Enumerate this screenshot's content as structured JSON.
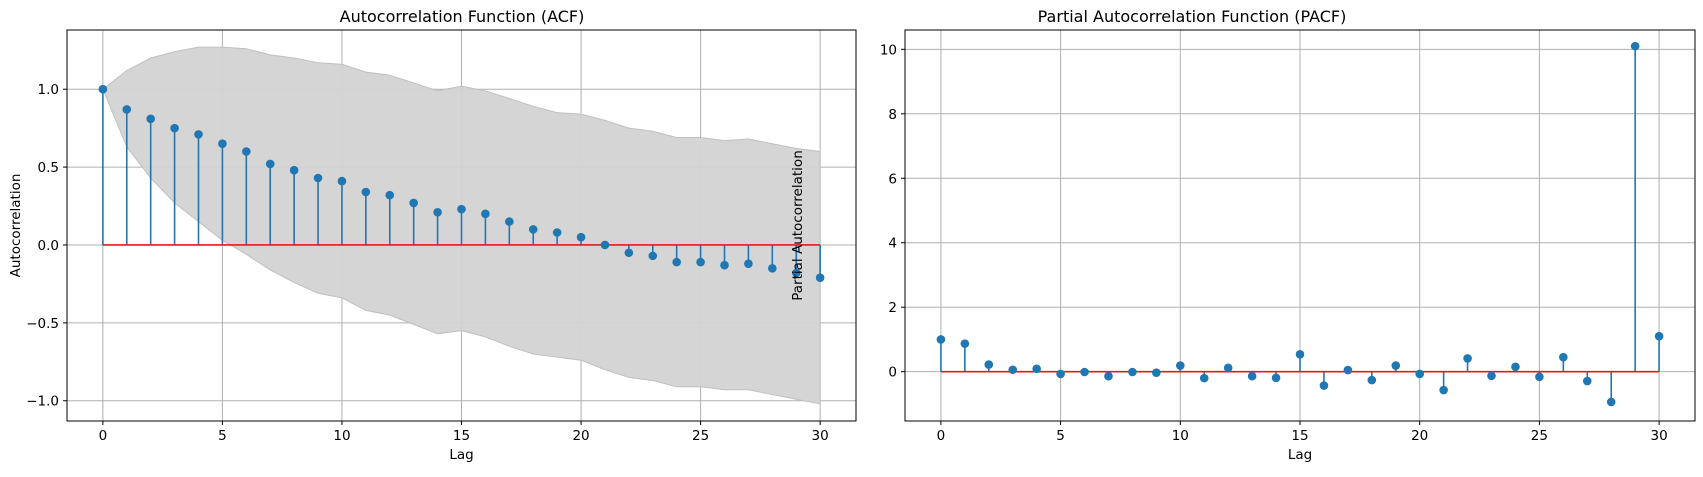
{
  "colors": {
    "stem": "#1f77b4",
    "marker": "#1f77b4",
    "baseline": "#e41a1c",
    "confidence_band": "#d3d3d3",
    "grid": "#b0b0b0"
  },
  "chart_data": [
    {
      "type": "stem",
      "title": "Autocorrelation Function (ACF)",
      "xlabel": "Lag",
      "ylabel": "Autocorrelation",
      "xlim": [
        -1.5,
        31.5
      ],
      "ylim": [
        -1.13,
        1.38
      ],
      "xticks": [
        0,
        5,
        10,
        15,
        20,
        25,
        30
      ],
      "xtick_labels": [
        "0",
        "5",
        "10",
        "15",
        "20",
        "25",
        "30"
      ],
      "yticks": [
        -1.0,
        -0.5,
        0.0,
        0.5,
        1.0
      ],
      "ytick_labels": [
        "−1.0",
        "−0.5",
        "0.0",
        "0.5",
        "1.0"
      ],
      "grid": true,
      "baseline": 0,
      "x": [
        0,
        1,
        2,
        3,
        4,
        5,
        6,
        7,
        8,
        9,
        10,
        11,
        12,
        13,
        14,
        15,
        16,
        17,
        18,
        19,
        20,
        21,
        22,
        23,
        24,
        25,
        26,
        27,
        28,
        29,
        30
      ],
      "values": [
        1.0,
        0.87,
        0.81,
        0.75,
        0.71,
        0.65,
        0.6,
        0.52,
        0.48,
        0.43,
        0.41,
        0.34,
        0.32,
        0.27,
        0.21,
        0.23,
        0.2,
        0.15,
        0.1,
        0.08,
        0.05,
        0.0,
        -0.05,
        -0.07,
        -0.11,
        -0.11,
        -0.13,
        -0.12,
        -0.15,
        -0.18,
        -0.21
      ],
      "confidence_band": {
        "upper": [
          1.0,
          1.12,
          1.2,
          1.24,
          1.27,
          1.27,
          1.26,
          1.22,
          1.2,
          1.17,
          1.16,
          1.11,
          1.09,
          1.04,
          0.99,
          1.02,
          0.99,
          0.94,
          0.89,
          0.85,
          0.84,
          0.8,
          0.75,
          0.73,
          0.69,
          0.69,
          0.67,
          0.68,
          0.65,
          0.62,
          0.6
        ],
        "lower": [
          1.0,
          0.63,
          0.43,
          0.27,
          0.15,
          0.03,
          -0.06,
          -0.16,
          -0.24,
          -0.31,
          -0.34,
          -0.42,
          -0.45,
          -0.51,
          -0.57,
          -0.55,
          -0.59,
          -0.65,
          -0.7,
          -0.72,
          -0.74,
          -0.8,
          -0.85,
          -0.87,
          -0.91,
          -0.91,
          -0.93,
          -0.93,
          -0.96,
          -0.99,
          -1.02
        ]
      }
    },
    {
      "type": "stem",
      "title": "Partial Autocorrelation Function (PACF)",
      "xlabel": "Lag",
      "ylabel": "Partial Autocorrelation",
      "xlim": [
        -1.5,
        31.5
      ],
      "ylim": [
        -1.53,
        10.6
      ],
      "xticks": [
        0,
        5,
        10,
        15,
        20,
        25,
        30
      ],
      "xtick_labels": [
        "0",
        "5",
        "10",
        "15",
        "20",
        "25",
        "30"
      ],
      "yticks": [
        0,
        2,
        4,
        6,
        8,
        10
      ],
      "ytick_labels": [
        "0",
        "2",
        "4",
        "6",
        "8",
        "10"
      ],
      "grid": true,
      "baseline": 0,
      "x": [
        0,
        1,
        2,
        3,
        4,
        5,
        6,
        7,
        8,
        9,
        10,
        11,
        12,
        13,
        14,
        15,
        16,
        17,
        18,
        19,
        20,
        21,
        22,
        23,
        24,
        25,
        26,
        27,
        28,
        29,
        30
      ],
      "values": [
        1.0,
        0.87,
        0.22,
        0.06,
        0.09,
        -0.07,
        -0.01,
        -0.14,
        -0.01,
        -0.03,
        0.19,
        -0.2,
        0.12,
        -0.14,
        -0.19,
        0.54,
        -0.43,
        0.05,
        -0.26,
        0.19,
        -0.07,
        -0.57,
        0.41,
        -0.13,
        0.15,
        -0.16,
        0.45,
        -0.29,
        -0.94,
        10.1,
        1.1
      ]
    }
  ]
}
